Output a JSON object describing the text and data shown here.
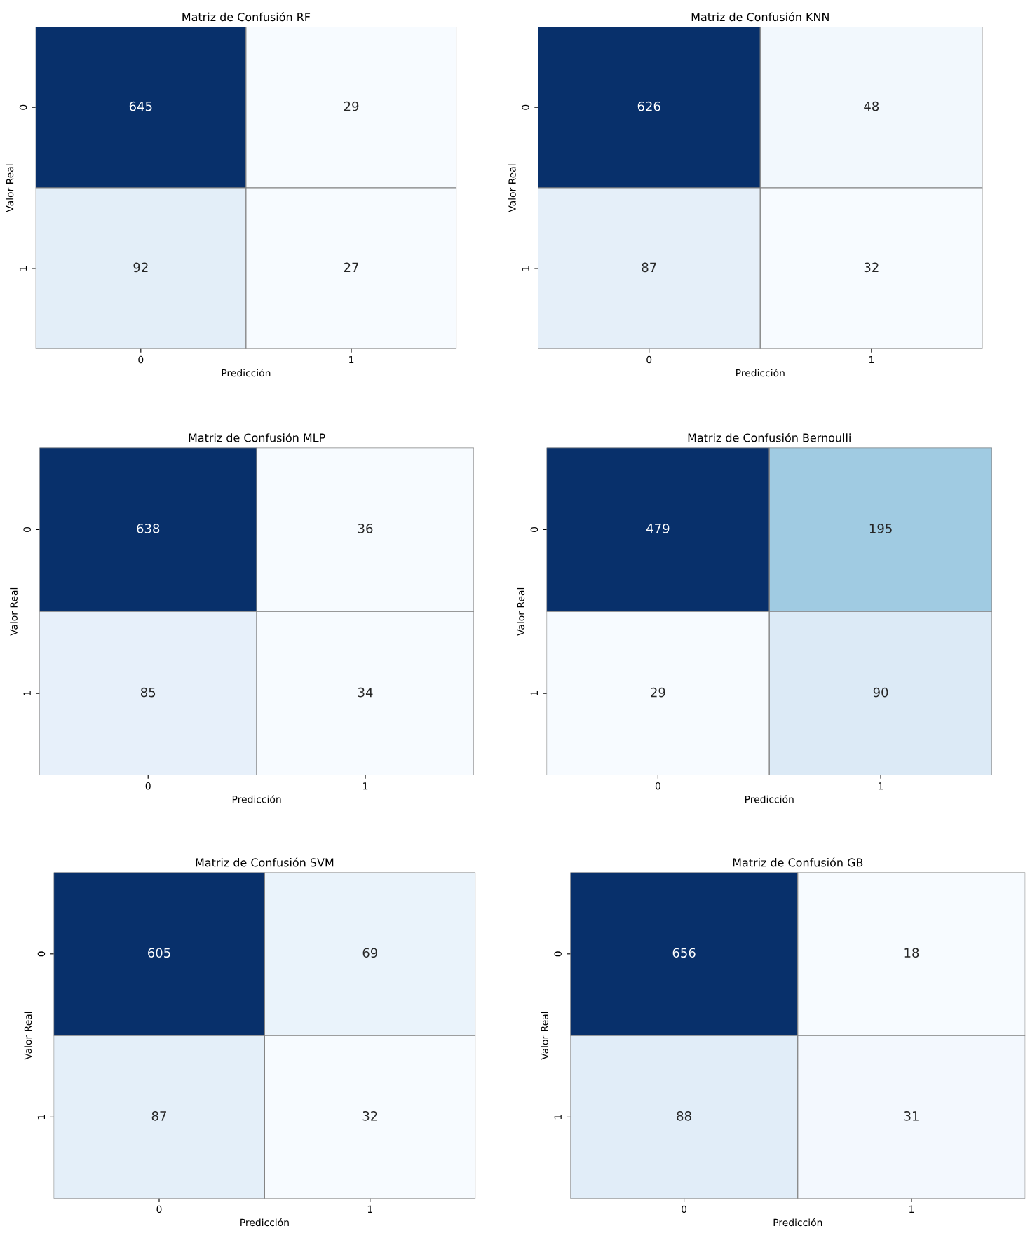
{
  "chart_data": [
    {
      "type": "heatmap",
      "title": "Matriz de Confusión RF",
      "xlabel": "Predicción",
      "ylabel": "Valor Real",
      "categories": [
        "0",
        "1"
      ],
      "y_categories": [
        "0",
        "1"
      ],
      "cells": [
        [
          645,
          29
        ],
        [
          92,
          27
        ]
      ],
      "data_labels": true
    },
    {
      "type": "heatmap",
      "title": "Matriz de Confusión KNN",
      "xlabel": "Predicción",
      "ylabel": "Valor Real",
      "categories": [
        "0",
        "1"
      ],
      "y_categories": [
        "0",
        "1"
      ],
      "cells": [
        [
          626,
          48
        ],
        [
          87,
          32
        ]
      ],
      "data_labels": true
    },
    {
      "type": "heatmap",
      "title": "Matriz de Confusión MLP",
      "xlabel": "Predicción",
      "ylabel": "Valor Real",
      "categories": [
        "0",
        "1"
      ],
      "y_categories": [
        "0",
        "1"
      ],
      "cells": [
        [
          638,
          36
        ],
        [
          85,
          34
        ]
      ],
      "data_labels": true
    },
    {
      "type": "heatmap",
      "title": "Matriz de Confusión Bernoulli",
      "xlabel": "Predicción",
      "ylabel": "Valor Real",
      "categories": [
        "0",
        "1"
      ],
      "y_categories": [
        "0",
        "1"
      ],
      "cells": [
        [
          479,
          195
        ],
        [
          29,
          90
        ]
      ],
      "data_labels": true
    },
    {
      "type": "heatmap",
      "title": "Matriz de Confusión SVM",
      "xlabel": "Predicción",
      "ylabel": "Valor Real",
      "categories": [
        "0",
        "1"
      ],
      "y_categories": [
        "0",
        "1"
      ],
      "cells": [
        [
          605,
          69
        ],
        [
          87,
          32
        ]
      ],
      "data_labels": true
    },
    {
      "type": "heatmap",
      "title": "Matriz de Confusión GB",
      "xlabel": "Predicción",
      "ylabel": "Valor Real",
      "categories": [
        "0",
        "1"
      ],
      "y_categories": [
        "0",
        "1"
      ],
      "cells": [
        [
          656,
          18
        ],
        [
          88,
          31
        ]
      ],
      "data_labels": true
    }
  ]
}
